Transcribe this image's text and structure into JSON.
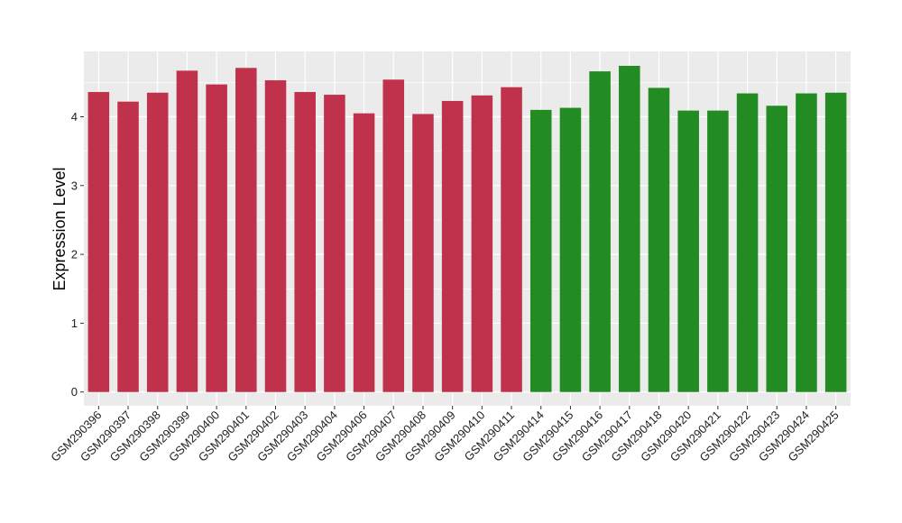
{
  "chart_data": {
    "type": "bar",
    "title": "",
    "xlabel": "",
    "ylabel": "Expression Level",
    "ylim": [
      -0.2,
      4.95
    ],
    "yticks": [
      0,
      1,
      2,
      3,
      4
    ],
    "ytick_labels": [
      "0",
      "1",
      "2",
      "3",
      "4"
    ],
    "grid": true,
    "legend": "none",
    "categories": [
      "GSM290396",
      "GSM290397",
      "GSM290398",
      "GSM290399",
      "GSM290400",
      "GSM290401",
      "GSM290402",
      "GSM290403",
      "GSM290404",
      "GSM290406",
      "GSM290407",
      "GSM290408",
      "GSM290409",
      "GSM290410",
      "GSM290411",
      "GSM290414",
      "GSM290415",
      "GSM290416",
      "GSM290417",
      "GSM290418",
      "GSM290420",
      "GSM290421",
      "GSM290422",
      "GSM290423",
      "GSM290424",
      "GSM290425"
    ],
    "values": [
      4.36,
      4.22,
      4.35,
      4.67,
      4.47,
      4.71,
      4.53,
      4.36,
      4.32,
      4.05,
      4.54,
      4.04,
      4.23,
      4.31,
      4.43,
      4.1,
      4.13,
      4.66,
      4.74,
      4.42,
      4.09,
      4.09,
      4.34,
      4.16,
      4.34,
      4.35
    ],
    "groups": [
      "1",
      "1",
      "1",
      "1",
      "1",
      "1",
      "1",
      "1",
      "1",
      "1",
      "1",
      "1",
      "1",
      "1",
      "1",
      "2",
      "2",
      "2",
      "2",
      "2",
      "2",
      "2",
      "2",
      "2",
      "2",
      "2"
    ],
    "group_colors": {
      "1": "#c0314b",
      "2": "#228b22"
    },
    "panel_background": "#ebebeb",
    "grid_color": "#ffffff"
  }
}
